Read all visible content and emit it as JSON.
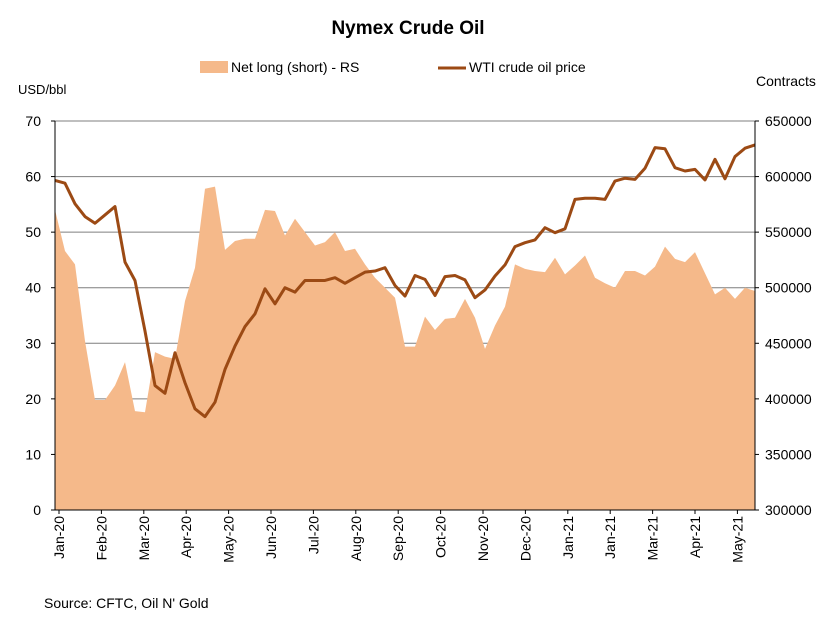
{
  "chart_data": {
    "type": "area",
    "title": "Nymex Crude Oil",
    "ylabel_left": "USD/bbl",
    "ylabel_right": "Contracts",
    "source": "Source: CFTC, Oil N' Gold",
    "legend_position": "top",
    "grid": true,
    "x_tick_labels": [
      "Jan-20",
      "Feb-20",
      "Mar-20",
      "Apr-20",
      "May-20",
      "Jun-20",
      "Jul-20",
      "Aug-20",
      "Sep-20",
      "Oct-20",
      "Nov-20",
      "Dec-20",
      "Jan-21",
      "Jan-21",
      "Mar-21",
      "Apr-21",
      "May-21"
    ],
    "y_left": {
      "min": 0,
      "max": 70,
      "ticks": [
        "0",
        "10",
        "20",
        "30",
        "40",
        "50",
        "60",
        "70"
      ]
    },
    "y_right": {
      "min": 300000,
      "max": 650000,
      "ticks": [
        "300000",
        "350000",
        "400000",
        "450000",
        "500000",
        "550000",
        "600000",
        "650000"
      ]
    },
    "series": [
      {
        "name": "Net long (short) - RS",
        "kind": "area",
        "axis": "right",
        "color": "#f5b98a",
        "values": [
          570000,
          533000,
          521000,
          452000,
          399000,
          399000,
          412000,
          433000,
          389000,
          388000,
          442000,
          438000,
          436000,
          488000,
          518000,
          589000,
          591000,
          534000,
          542000,
          544000,
          544000,
          570000,
          569000,
          547000,
          562000,
          550000,
          538000,
          541000,
          550000,
          533000,
          535000,
          521000,
          509000,
          500000,
          491000,
          447000,
          447000,
          474000,
          462000,
          472000,
          473000,
          490000,
          473000,
          445000,
          466000,
          483000,
          521000,
          517000,
          515000,
          514000,
          527000,
          512000,
          520000,
          529000,
          509000,
          504000,
          500000,
          515000,
          515000,
          511000,
          519000,
          537000,
          526000,
          523000,
          532000,
          513000,
          494000,
          500000,
          490000,
          500000,
          497000
        ]
      },
      {
        "name": "WTI crude oil price",
        "kind": "line",
        "axis": "left",
        "color": "#9c4a14",
        "values": [
          59.3,
          58.8,
          55.1,
          52.8,
          51.6,
          53.1,
          54.6,
          44.6,
          41.3,
          32.2,
          22.4,
          21.0,
          28.3,
          22.9,
          18.2,
          16.8,
          19.4,
          25.3,
          29.5,
          33.0,
          35.3,
          39.8,
          37.1,
          40.0,
          39.2,
          41.3,
          41.3,
          41.3,
          41.8,
          40.8,
          41.8,
          42.8,
          43.0,
          43.6,
          40.4,
          38.5,
          42.2,
          41.5,
          38.6,
          42.0,
          42.2,
          41.4,
          38.2,
          39.6,
          42.1,
          44.1,
          47.4,
          48.1,
          48.6,
          50.8,
          49.9,
          50.6,
          55.9,
          56.1,
          56.1,
          55.9,
          59.2,
          59.7,
          59.5,
          61.5,
          65.2,
          65.0,
          61.6,
          61.0,
          61.3,
          59.4,
          63.1,
          59.6,
          63.6,
          65.1,
          65.7
        ]
      }
    ]
  }
}
